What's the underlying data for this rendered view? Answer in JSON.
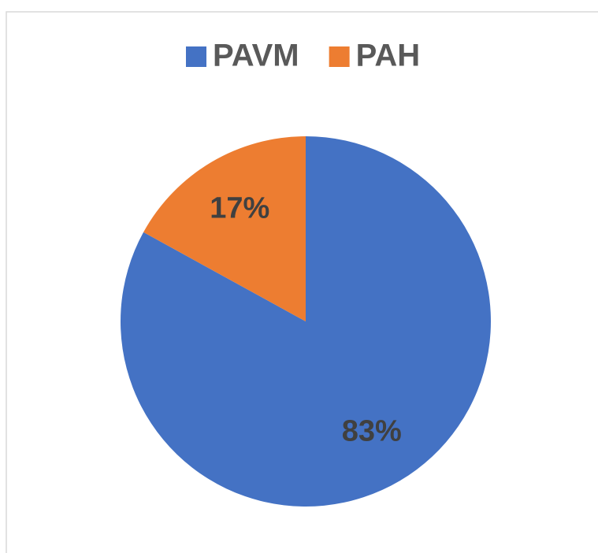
{
  "chart_data": {
    "type": "pie",
    "categories": [
      "PAVM",
      "PAH"
    ],
    "values": [
      83,
      17
    ],
    "value_labels": [
      "83%",
      "17%"
    ],
    "colors": [
      "#4472c4",
      "#ed7d31"
    ],
    "legend": "top"
  }
}
